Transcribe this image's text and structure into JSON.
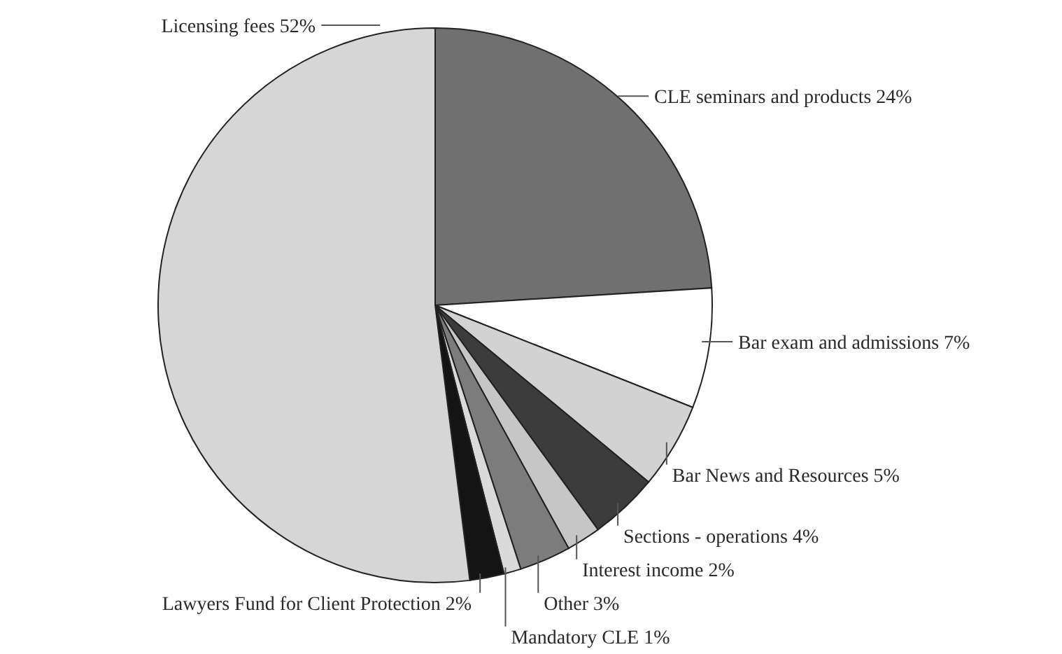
{
  "chart_data": {
    "type": "pie",
    "categories": [
      "CLE seminars and products",
      "Bar exam and admissions",
      "Bar News and Resources",
      "Sections - operations",
      "Interest income",
      "Other",
      "Mandatory CLE",
      "Lawyers Fund for Client Protection",
      "Licensing fees"
    ],
    "values": [
      24,
      7,
      5,
      4,
      2,
      3,
      1,
      2,
      52
    ],
    "value_labels": [
      "24%",
      "7%",
      "5%",
      "4%",
      "2%",
      "3%",
      "1%",
      "2%",
      "52%"
    ],
    "colors": [
      "#707070",
      "#ffffff",
      "#d2d2d2",
      "#3c3c3c",
      "#c6c6c6",
      "#7c7c7c",
      "#dadada",
      "#141414",
      "#d6d6d6"
    ]
  }
}
